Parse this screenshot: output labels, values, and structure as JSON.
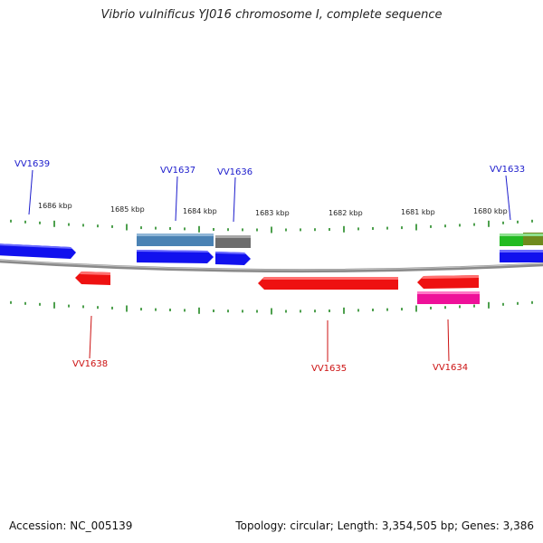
{
  "title": "Vibrio vulnificus YJ016 chromosome I, complete sequence",
  "footer": {
    "accession": "Accession: NC_005139",
    "topology": "Topology: circular; Length: 3,354,505 bp; Genes: 3,386"
  },
  "scale_labels": [
    "1686 kbp",
    "1685 kbp",
    "1684 kbp",
    "1683 kbp",
    "1682 kbp",
    "1681 kbp",
    "1680 kbp"
  ],
  "gene_labels": {
    "top": [
      "VV1639",
      "VV1637",
      "VV1636",
      "VV1633"
    ],
    "bottom": [
      "VV1638",
      "VV1635",
      "VV1634"
    ]
  },
  "colors": {
    "forward_gene": "#1111ee",
    "reverse_gene": "#ee1111",
    "pink_feature": "#ee1199",
    "steel_feature": "#4a82b4",
    "gray_feature": "#6d6d6d",
    "green_feature": "#22bb22",
    "olive_feature": "#6f8a1e",
    "backbone": "#8a8a8a",
    "ticks": "#228822"
  }
}
